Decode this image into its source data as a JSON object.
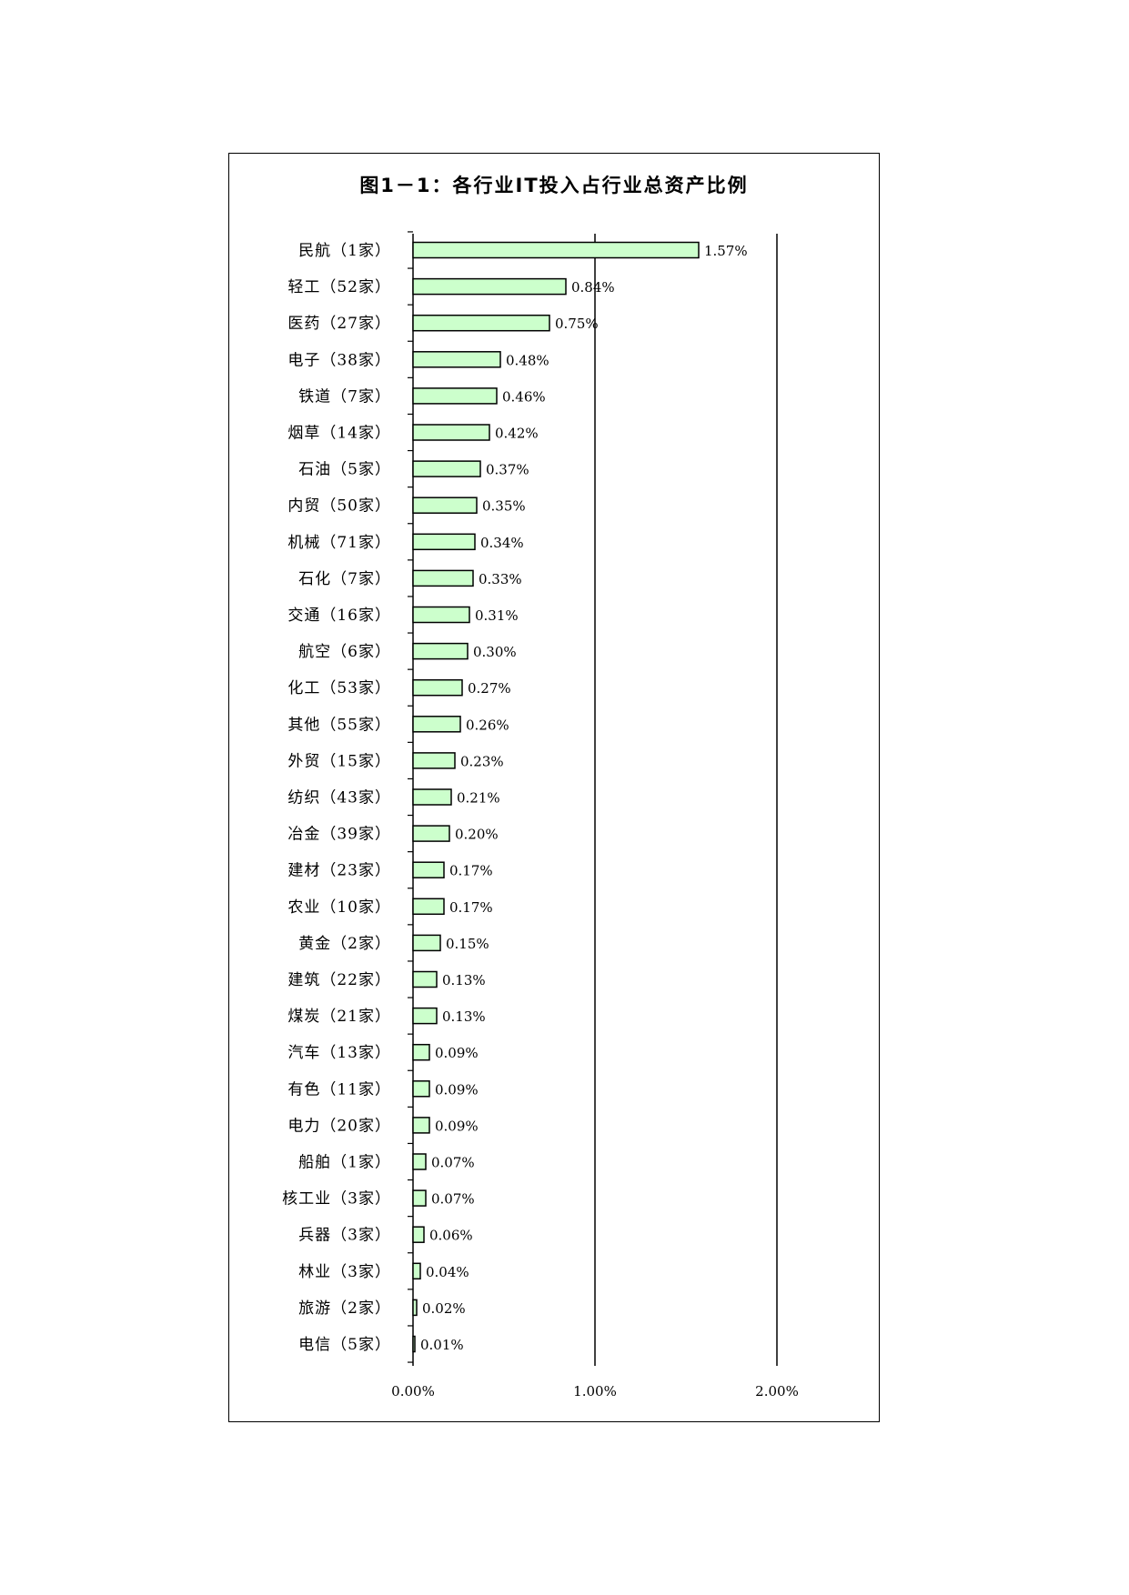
{
  "chart_data": {
    "type": "bar",
    "orientation": "horizontal",
    "title": "图1－1：各行业IT投入占行业总资产比例",
    "xlim": [
      0,
      2.0
    ],
    "x_ticks": [
      "0.00%",
      "1.00%",
      "2.00%"
    ],
    "grid": "vertical lines at 1.00% and 2.00%",
    "bar_color": "#ccffcc",
    "categories": [
      "民航（1家）",
      "轻工（52家）",
      "医药（27家）",
      "电子（38家）",
      "铁道（7家）",
      "烟草（14家）",
      "石油（5家）",
      "内贸（50家）",
      "机械（71家）",
      "石化（7家）",
      "交通（16家）",
      "航空（6家）",
      "化工（53家）",
      "其他（55家）",
      "外贸（15家）",
      "纺织（43家）",
      "冶金（39家）",
      "建材（23家）",
      "农业（10家）",
      "黄金（2家）",
      "建筑（22家）",
      "煤炭（21家）",
      "汽车（13家）",
      "有色（11家）",
      "电力（20家）",
      "船舶（1家）",
      "核工业（3家）",
      "兵器（3家）",
      "林业（3家）",
      "旅游（2家）",
      "电信（5家）"
    ],
    "values": [
      1.57,
      0.84,
      0.75,
      0.48,
      0.46,
      0.42,
      0.37,
      0.35,
      0.34,
      0.33,
      0.31,
      0.3,
      0.27,
      0.26,
      0.23,
      0.21,
      0.2,
      0.17,
      0.17,
      0.15,
      0.13,
      0.13,
      0.09,
      0.09,
      0.09,
      0.07,
      0.07,
      0.06,
      0.04,
      0.02,
      0.01
    ],
    "value_labels": [
      "1.57%",
      "0.84%",
      "0.75%",
      "0.48%",
      "0.46%",
      "0.42%",
      "0.37%",
      "0.35%",
      "0.34%",
      "0.33%",
      "0.31%",
      "0.30%",
      "0.27%",
      "0.26%",
      "0.23%",
      "0.21%",
      "0.20%",
      "0.17%",
      "0.17%",
      "0.15%",
      "0.13%",
      "0.13%",
      "0.09%",
      "0.09%",
      "0.09%",
      "0.07%",
      "0.07%",
      "0.06%",
      "0.04%",
      "0.02%",
      "0.01%"
    ]
  }
}
